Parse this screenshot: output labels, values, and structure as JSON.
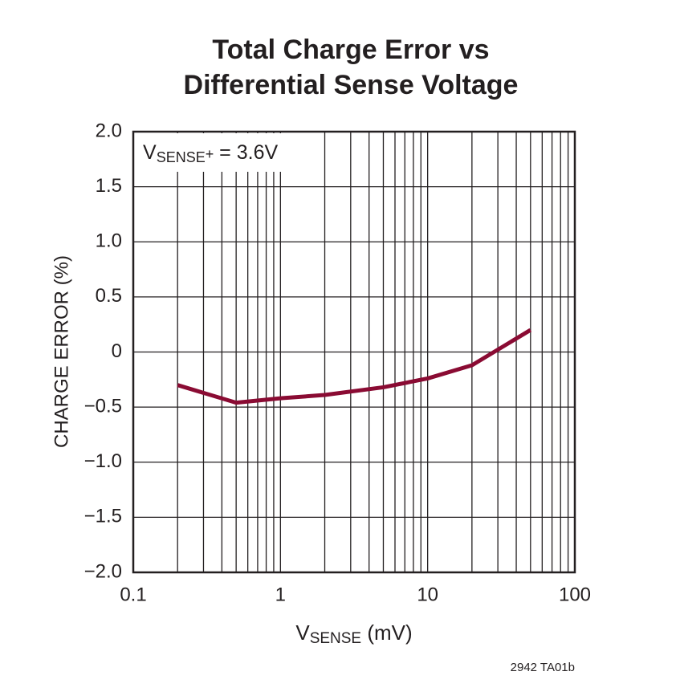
{
  "chart_data": {
    "type": "line",
    "title": [
      "Total Charge Error vs",
      "Differential Sense Voltage"
    ],
    "x_label": {
      "main": "V",
      "sub": "SENSE",
      "rest": " (mV)"
    },
    "y_label": "CHARGE ERROR (%)",
    "annotation": {
      "main": "V",
      "sub": "SENSE",
      "sup": "+",
      "rest": " = 3.6V"
    },
    "footnote": "2942 TA01b",
    "x": [
      0.2,
      0.5,
      1,
      2,
      5,
      10,
      20,
      50
    ],
    "series": [
      {
        "name": "Charge Error",
        "color": "#8a0b33",
        "values": [
          -0.3,
          -0.46,
          -0.42,
          -0.39,
          -0.32,
          -0.24,
          -0.12,
          0.2
        ]
      }
    ],
    "x_log": true,
    "xlim": [
      0.1,
      100
    ],
    "xticks": [
      0.1,
      1,
      10,
      100
    ],
    "x_minor_grid": [
      0.2,
      0.3,
      0.4,
      0.5,
      0.6,
      0.7,
      0.8,
      0.9,
      2,
      3,
      4,
      5,
      6,
      7,
      8,
      9,
      20,
      30,
      40,
      50,
      60,
      70,
      80,
      90
    ],
    "ylim": [
      -2,
      2
    ],
    "yticks": [
      {
        "value": -2,
        "label": "−2.0"
      },
      {
        "value": -1.5,
        "label": "−1.5"
      },
      {
        "value": -1,
        "label": "−1.0"
      },
      {
        "value": -0.5,
        "label": "−0.5"
      },
      0,
      0.5,
      {
        "value": 1,
        "label": "1.0"
      },
      1.5,
      {
        "value": 2,
        "label": "2.0"
      }
    ],
    "grid": true
  }
}
